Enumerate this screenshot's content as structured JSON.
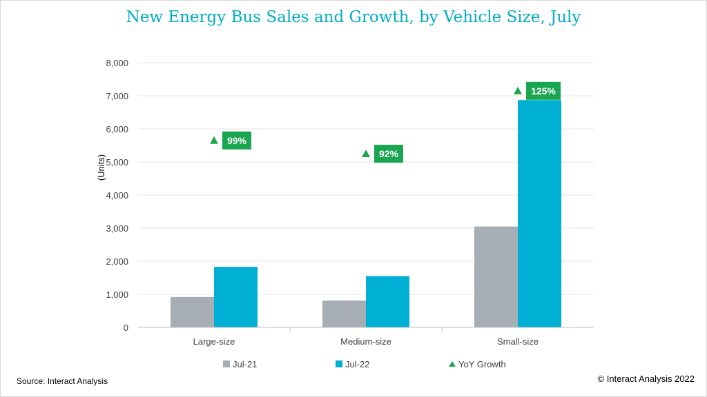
{
  "title": "New Energy Bus Sales and Growth, by Vehicle Size, July",
  "source": "Source: Interact Analysis",
  "copyright": "© Interact Analysis 2022",
  "colors": {
    "title": "#00acc8",
    "jul21": "#a6adb4",
    "jul22": "#00b0d4",
    "growth": "#1aa650",
    "grid": "#e6e6e6",
    "axis": "#bfbfbf"
  },
  "chart_data": {
    "type": "bar",
    "title": "New Energy Bus Sales and Growth, by Vehicle Size, July",
    "ylabel": "(Units)",
    "xlabel": "",
    "ylim": [
      0,
      8000
    ],
    "yticks": [
      0,
      1000,
      2000,
      3000,
      4000,
      5000,
      6000,
      7000,
      8000
    ],
    "ytick_labels": [
      "0",
      "1,000",
      "2,000",
      "3,000",
      "4,000",
      "5,000",
      "6,000",
      "7,000",
      "8,000"
    ],
    "categories": [
      "Large-size",
      "Medium-size",
      "Small-size"
    ],
    "series": [
      {
        "name": "Jul-21",
        "values": [
          920,
          810,
          3050
        ]
      },
      {
        "name": "Jul-22",
        "values": [
          1830,
          1550,
          6870
        ]
      }
    ],
    "growth": {
      "name": "YoY Growth",
      "values": [
        99,
        92,
        125
      ],
      "labels": [
        "99%",
        "92%",
        "125%"
      ],
      "marker_positions": [
        5650,
        5250,
        7150
      ]
    },
    "grid": true,
    "legend": "bottom"
  }
}
